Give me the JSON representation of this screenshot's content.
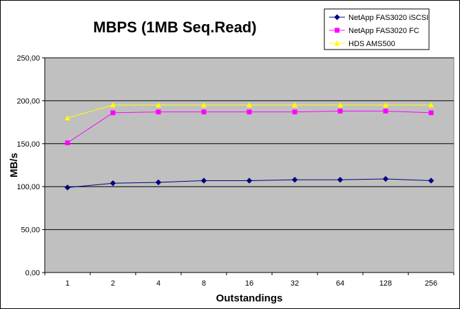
{
  "chart_data": {
    "type": "line",
    "title": "MBPS (1MB Seq.Read)",
    "xlabel": "Outstandings",
    "ylabel": "MB/s",
    "categories": [
      "1",
      "2",
      "4",
      "8",
      "16",
      "32",
      "64",
      "128",
      "256"
    ],
    "ylim": [
      0,
      250
    ],
    "yticks": [
      "0,00",
      "50,00",
      "100,00",
      "150,00",
      "200,00",
      "250,00"
    ],
    "grid": true,
    "legend_position": "top-right",
    "plot_background": "#c0c0c0",
    "series": [
      {
        "name": "NetApp FAS3020 iSCSI",
        "color": "#000080",
        "marker": "diamond",
        "values": [
          99,
          104,
          105,
          107,
          107,
          108,
          108,
          109,
          107
        ]
      },
      {
        "name": "NetApp FAS3020 FC",
        "color": "#ff00ff",
        "marker": "square",
        "values": [
          151,
          186,
          187,
          187,
          187,
          187,
          188,
          188,
          186
        ]
      },
      {
        "name": "HDS AMS500",
        "color": "#ffff00",
        "marker": "triangle",
        "values": [
          180,
          195,
          195,
          195,
          195,
          195,
          195,
          195,
          195
        ]
      }
    ]
  }
}
